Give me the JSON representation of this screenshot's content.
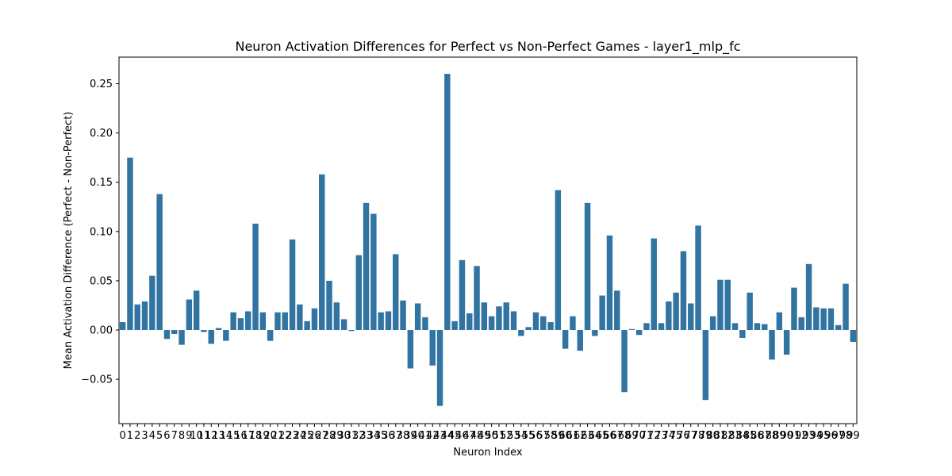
{
  "chart_data": {
    "type": "bar",
    "title": "Neuron Activation Differences for Perfect vs Non-Perfect Games - layer1_mlp_fc",
    "xlabel": "Neuron Index",
    "ylabel": "Mean Activation Difference (Perfect - Non-Perfect)",
    "ylim": [
      -0.095,
      0.277
    ],
    "yticks": [
      -0.05,
      0.0,
      0.05,
      0.1,
      0.15,
      0.2,
      0.25
    ],
    "ytick_labels": [
      "−0.05",
      "0.00",
      "0.05",
      "0.10",
      "0.15",
      "0.20",
      "0.25"
    ],
    "grid": false,
    "bar_color": "#3274a1",
    "categories": [
      "0",
      "1",
      "2",
      "3",
      "4",
      "5",
      "6",
      "7",
      "8",
      "9",
      "10",
      "11",
      "12",
      "13",
      "14",
      "15",
      "16",
      "17",
      "18",
      "19",
      "20",
      "21",
      "22",
      "23",
      "24",
      "25",
      "26",
      "27",
      "28",
      "29",
      "30",
      "31",
      "32",
      "33",
      "34",
      "35",
      "36",
      "37",
      "38",
      "39",
      "40",
      "41",
      "42",
      "43",
      "44",
      "45",
      "46",
      "47",
      "48",
      "49",
      "50",
      "51",
      "52",
      "53",
      "54",
      "55",
      "56",
      "57",
      "58",
      "59",
      "60",
      "61",
      "62",
      "63",
      "64",
      "65",
      "66",
      "67",
      "68",
      "69",
      "70",
      "71",
      "72",
      "73",
      "74",
      "75",
      "76",
      "77",
      "78",
      "79",
      "80",
      "81",
      "82",
      "83",
      "84",
      "85",
      "86",
      "87",
      "88",
      "89",
      "90",
      "91",
      "92",
      "93",
      "94",
      "95",
      "96",
      "97",
      "98",
      "99"
    ],
    "values": [
      0.008,
      0.175,
      0.026,
      0.029,
      0.055,
      0.138,
      -0.009,
      -0.004,
      -0.015,
      0.031,
      0.04,
      -0.002,
      -0.014,
      0.002,
      -0.011,
      0.018,
      0.012,
      0.019,
      0.108,
      0.018,
      -0.011,
      0.018,
      0.018,
      0.092,
      0.026,
      0.009,
      0.022,
      0.158,
      0.05,
      0.028,
      0.011,
      -0.001,
      0.076,
      0.129,
      0.118,
      0.018,
      0.019,
      0.077,
      0.03,
      -0.039,
      0.027,
      0.013,
      -0.036,
      -0.077,
      0.26,
      0.009,
      0.071,
      0.017,
      0.065,
      0.028,
      0.014,
      0.024,
      0.028,
      0.019,
      -0.006,
      0.003,
      0.018,
      0.014,
      0.008,
      0.142,
      -0.019,
      0.014,
      -0.021,
      0.129,
      -0.006,
      0.035,
      0.096,
      0.04,
      -0.063,
      0.001,
      -0.005,
      0.007,
      0.093,
      0.007,
      0.029,
      0.038,
      0.08,
      0.027,
      0.106,
      -0.071,
      0.014,
      0.051,
      0.051,
      0.007,
      -0.008,
      0.038,
      0.007,
      0.006,
      -0.03,
      0.018,
      -0.025,
      0.043,
      0.013,
      0.067,
      0.023,
      0.022,
      0.022,
      0.005,
      0.047,
      -0.012
    ]
  }
}
